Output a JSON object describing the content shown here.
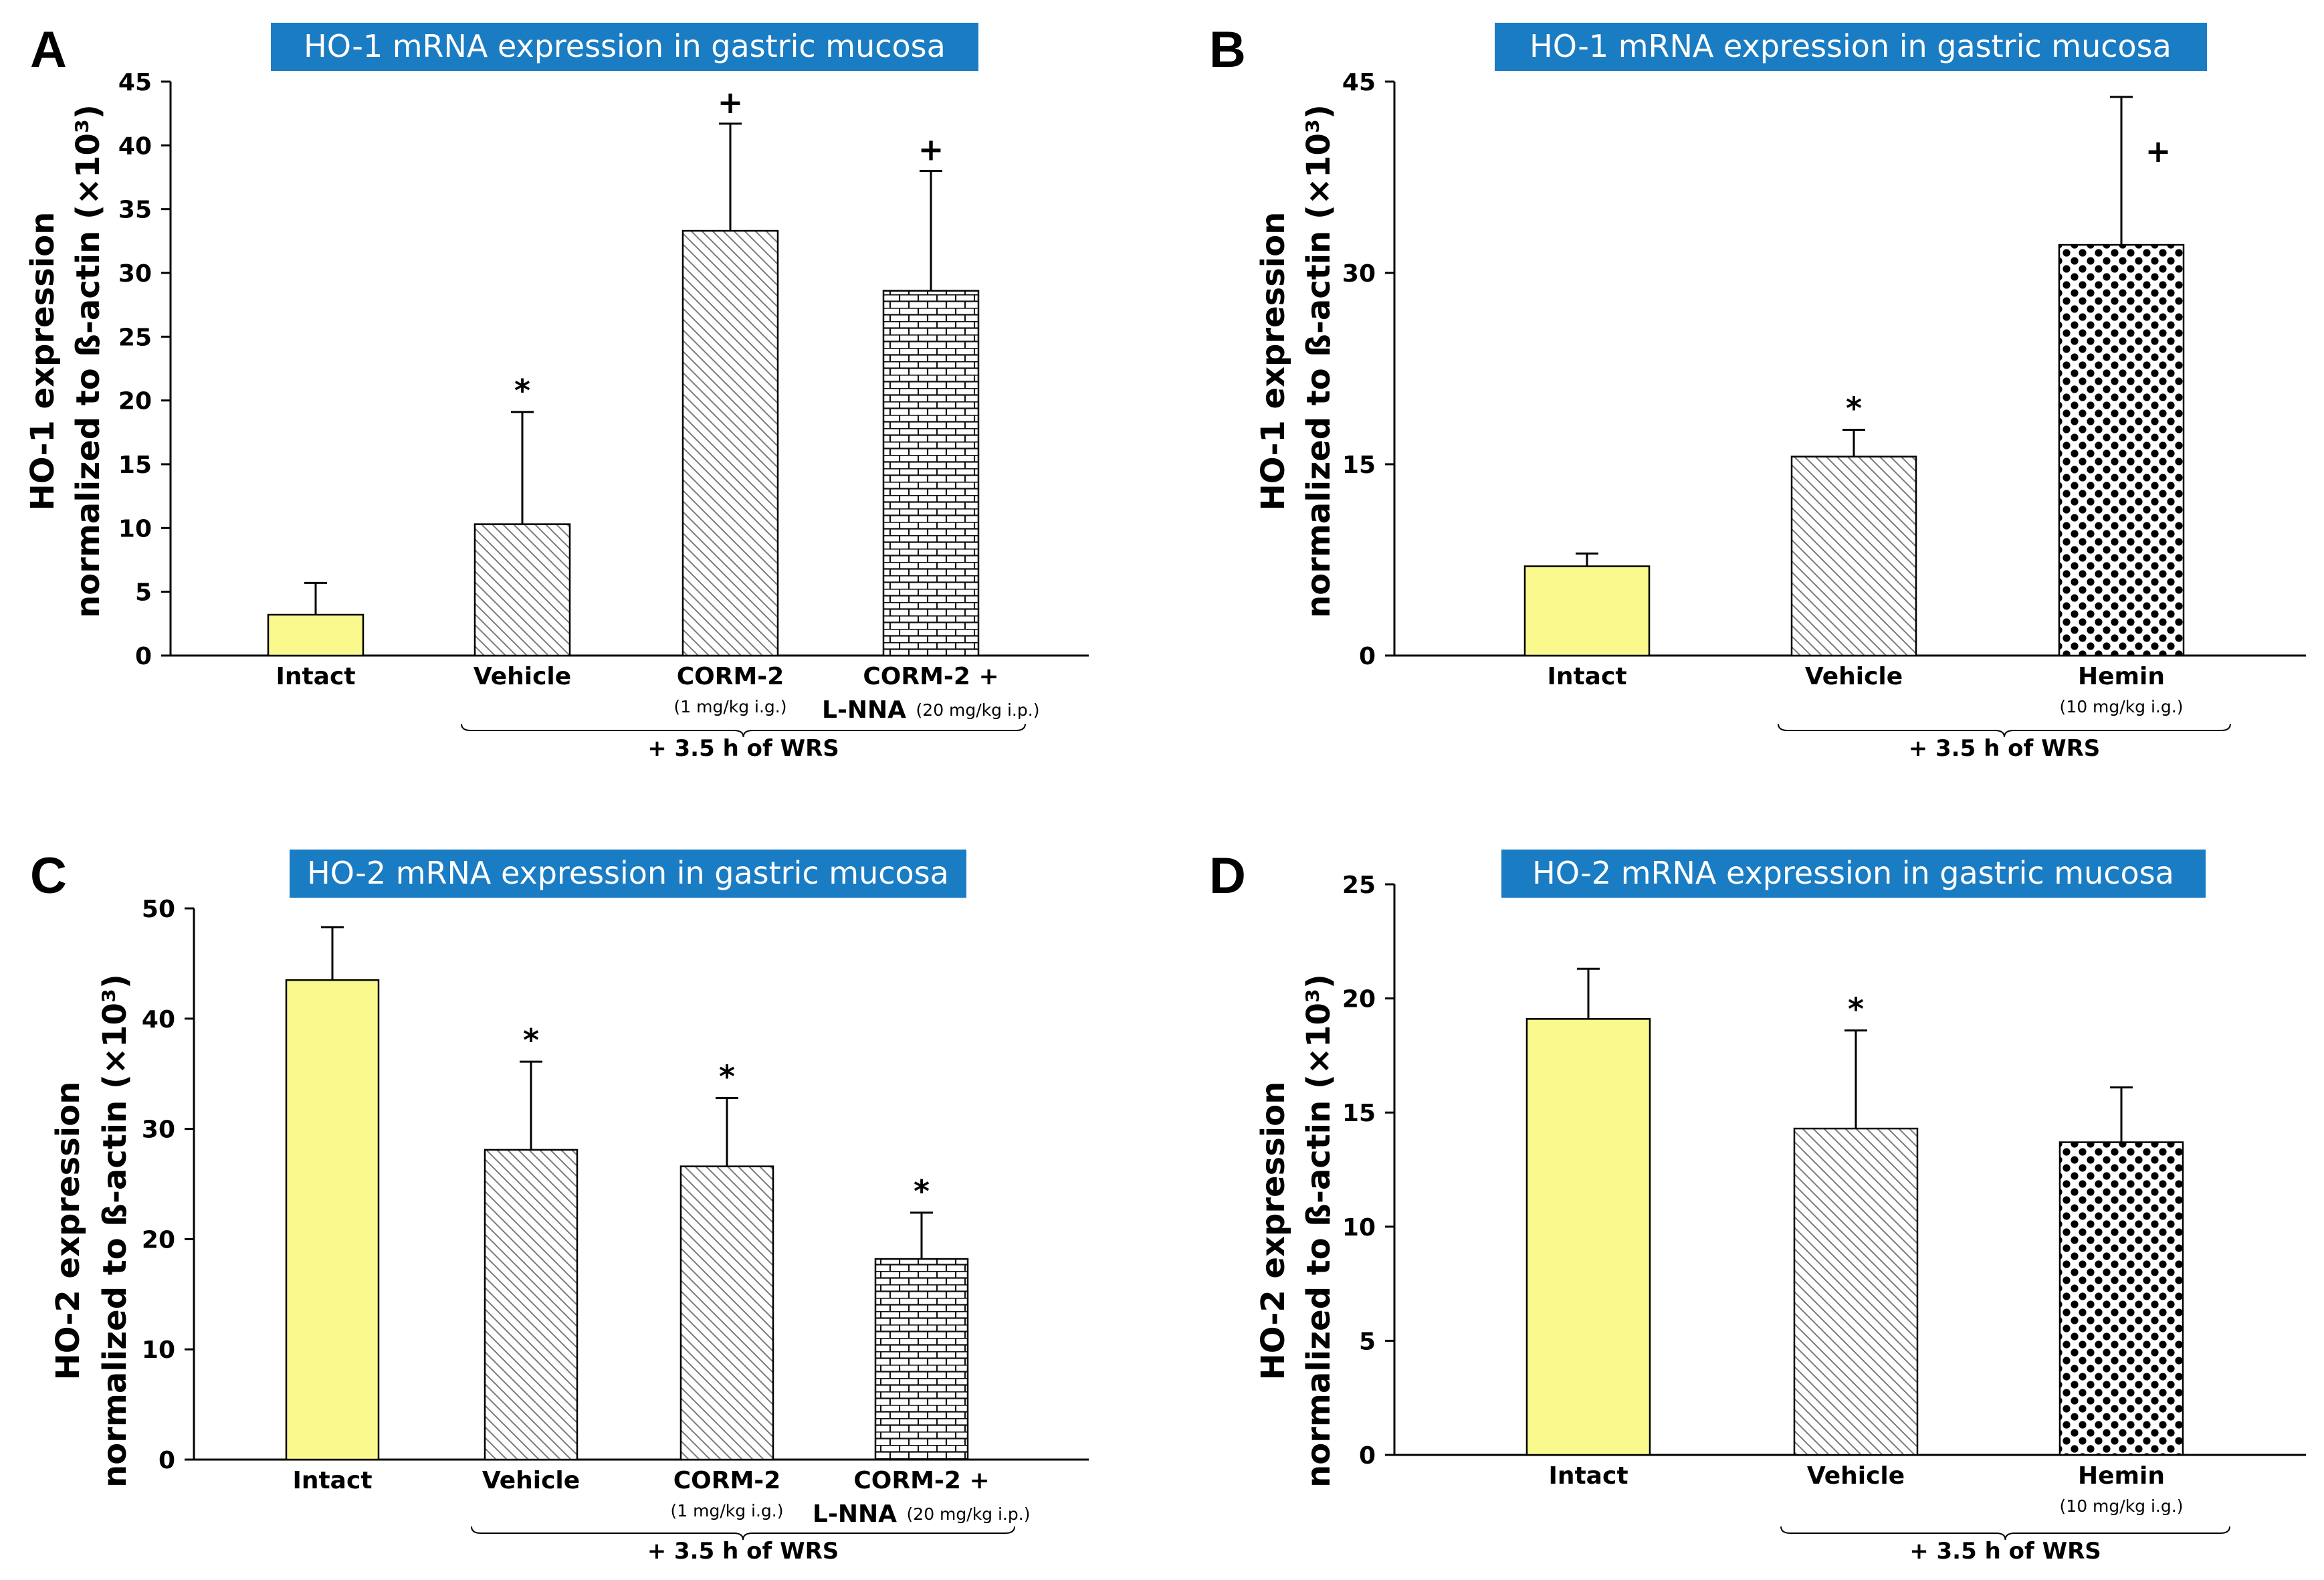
{
  "colors": {
    "title_bg": "#1a7cc3",
    "intact_fill": "#faf98e",
    "bar_stroke": "#000000"
  },
  "chart_data": [
    {
      "type": "bar",
      "panel": "A",
      "title": "HO-1 mRNA expression in gastric mucosa",
      "ylabel_line1": "HO-1 expression",
      "ylabel_line2": "normalized to ß-actin (×10³)",
      "ylim": [
        0,
        45
      ],
      "yticks": [
        0,
        5,
        10,
        15,
        20,
        25,
        30,
        35,
        40,
        45
      ],
      "categories": [
        "Intact",
        "Vehicle",
        "CORM-2",
        "CORM-2 +"
      ],
      "category_prefix": [
        "",
        "",
        "",
        "L-NNA"
      ],
      "doses": [
        "",
        "",
        "(1 mg/kg i.g.)",
        "(20 mg/kg i.p.)"
      ],
      "values": [
        3.2,
        10.3,
        33.3,
        28.6
      ],
      "errors": [
        2.5,
        8.8,
        8.4,
        9.4
      ],
      "patterns": [
        "yellow",
        "hatch",
        "hatch",
        "brick"
      ],
      "significance": [
        "",
        "*",
        "+",
        "+"
      ],
      "group_label": "+ 3.5 h of WRS",
      "group_range": [
        1,
        3
      ]
    },
    {
      "type": "bar",
      "panel": "B",
      "title": "HO-1 mRNA expression in gastric mucosa",
      "ylabel_line1": "HO-1 expression",
      "ylabel_line2": "normalized to ß-actin (×10³)",
      "ylim": [
        0,
        45
      ],
      "yticks": [
        0,
        15,
        30,
        45
      ],
      "categories": [
        "Intact",
        "Vehicle",
        "Hemin"
      ],
      "category_prefix": [
        "",
        "",
        ""
      ],
      "doses": [
        "",
        "",
        "(10 mg/kg i.g.)"
      ],
      "values": [
        7.0,
        15.6,
        32.2
      ],
      "errors": [
        1.0,
        2.1,
        11.6
      ],
      "patterns": [
        "yellow",
        "hatch",
        "dots"
      ],
      "significance": [
        "",
        "*",
        "+"
      ],
      "group_label": "+ 3.5 h of WRS",
      "group_range": [
        1,
        2
      ]
    },
    {
      "type": "bar",
      "panel": "C",
      "title": "HO-2 mRNA expression in gastric mucosa",
      "ylabel_line1": "HO-2 expression",
      "ylabel_line2": "normalized to ß-actin (×10³)",
      "ylim": [
        0,
        50
      ],
      "yticks": [
        0,
        10,
        20,
        30,
        40,
        50
      ],
      "categories": [
        "Intact",
        "Vehicle",
        "CORM-2",
        "CORM-2 +"
      ],
      "category_prefix": [
        "",
        "",
        "",
        "L-NNA"
      ],
      "doses": [
        "",
        "",
        "(1 mg/kg i.g.)",
        "(20 mg/kg i.p.)"
      ],
      "values": [
        43.5,
        28.1,
        26.6,
        18.2
      ],
      "errors": [
        4.8,
        8.0,
        6.2,
        4.2
      ],
      "patterns": [
        "yellow",
        "hatch",
        "hatch",
        "brick"
      ],
      "significance": [
        "",
        "*",
        "*",
        "*"
      ],
      "group_label": "+ 3.5 h of WRS",
      "group_range": [
        1,
        3
      ]
    },
    {
      "type": "bar",
      "panel": "D",
      "title": "HO-2 mRNA expression in gastric mucosa",
      "ylabel_line1": "HO-2 expression",
      "ylabel_line2": "normalized to ß-actin (×10³)",
      "ylim": [
        0,
        25
      ],
      "yticks": [
        0,
        5,
        10,
        15,
        20,
        25
      ],
      "categories": [
        "Intact",
        "Vehicle",
        "Hemin"
      ],
      "category_prefix": [
        "",
        "",
        ""
      ],
      "doses": [
        "",
        "",
        "(10 mg/kg i.g.)"
      ],
      "values": [
        19.1,
        14.3,
        13.7
      ],
      "errors": [
        2.2,
        4.3,
        2.4
      ],
      "patterns": [
        "yellow",
        "hatch",
        "dots"
      ],
      "significance": [
        "",
        "*",
        ""
      ],
      "group_label": "+ 3.5 h of WRS",
      "group_range": [
        1,
        2
      ]
    }
  ]
}
